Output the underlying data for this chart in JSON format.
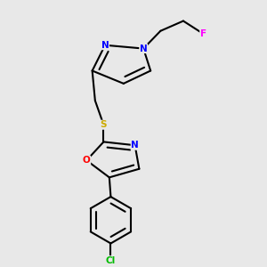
{
  "bg_color": "#e8e8e8",
  "atom_colors": {
    "N": "#0000ff",
    "O": "#ff0000",
    "S": "#ccaa00",
    "F": "#ff00ff",
    "Cl": "#00bb00"
  },
  "bond_color": "#000000",
  "bond_width": 1.5
}
